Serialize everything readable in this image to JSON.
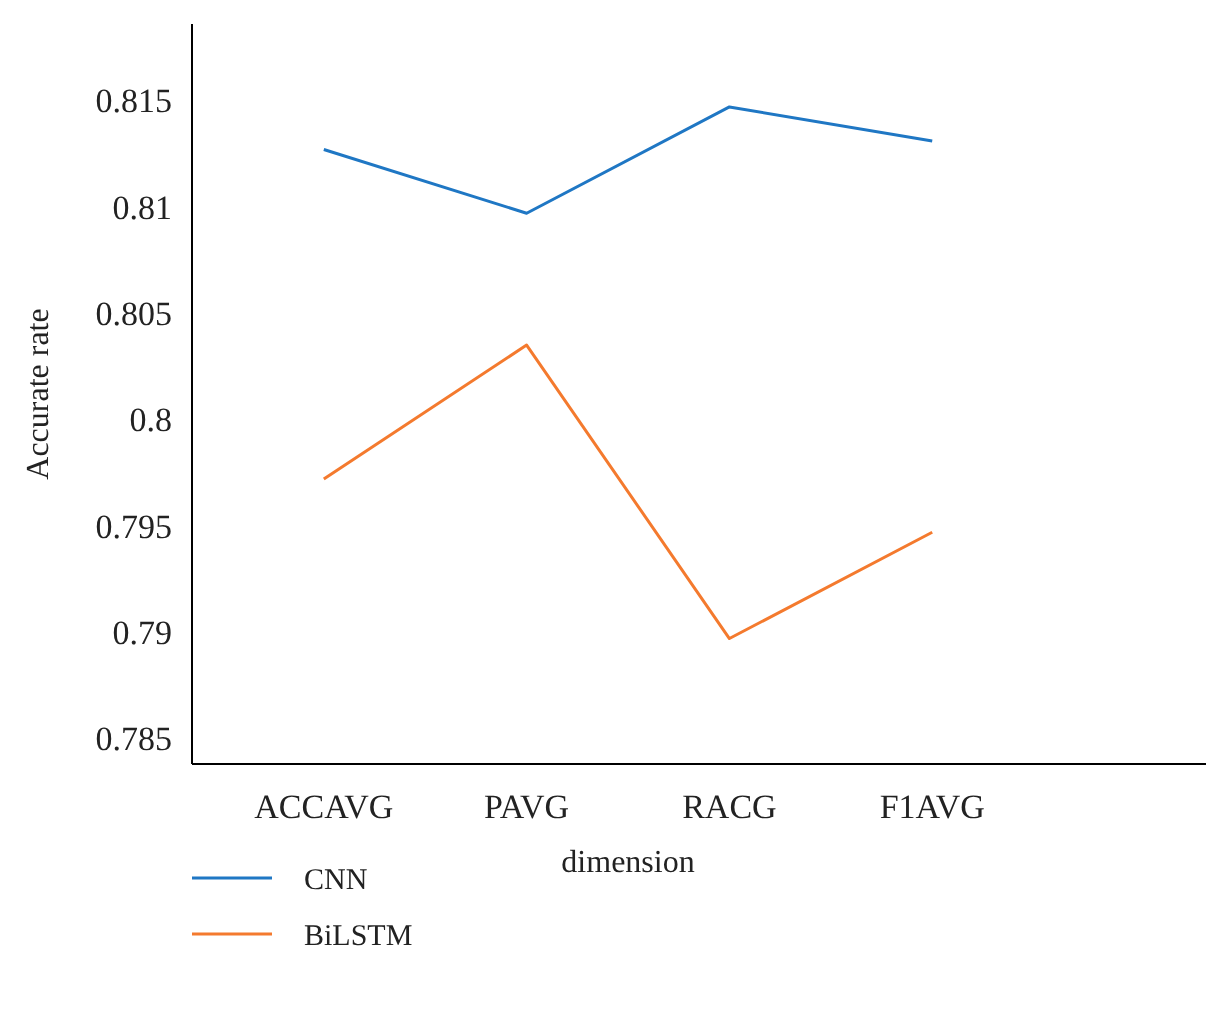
{
  "chart_data": {
    "type": "line",
    "xlabel": "dimension",
    "ylabel": "Accurate rate",
    "categories": [
      "ACCAVG",
      "PAVG",
      "RACG",
      "F1AVG"
    ],
    "series": [
      {
        "name": "CNN",
        "color": "#1f77c4",
        "values": [
          0.8127,
          0.8097,
          0.8147,
          0.8131
        ]
      },
      {
        "name": "BiLSTM",
        "color": "#f47a2e",
        "values": [
          0.7972,
          0.8035,
          0.7897,
          0.7947
        ]
      }
    ],
    "ylim": [
      0.7838,
      0.8186
    ],
    "yticks": [
      0.785,
      0.79,
      0.795,
      0.8,
      0.805,
      0.81,
      0.815
    ],
    "grid": false,
    "legend": "bottom left",
    "marker": "none",
    "line_style": "solid"
  }
}
